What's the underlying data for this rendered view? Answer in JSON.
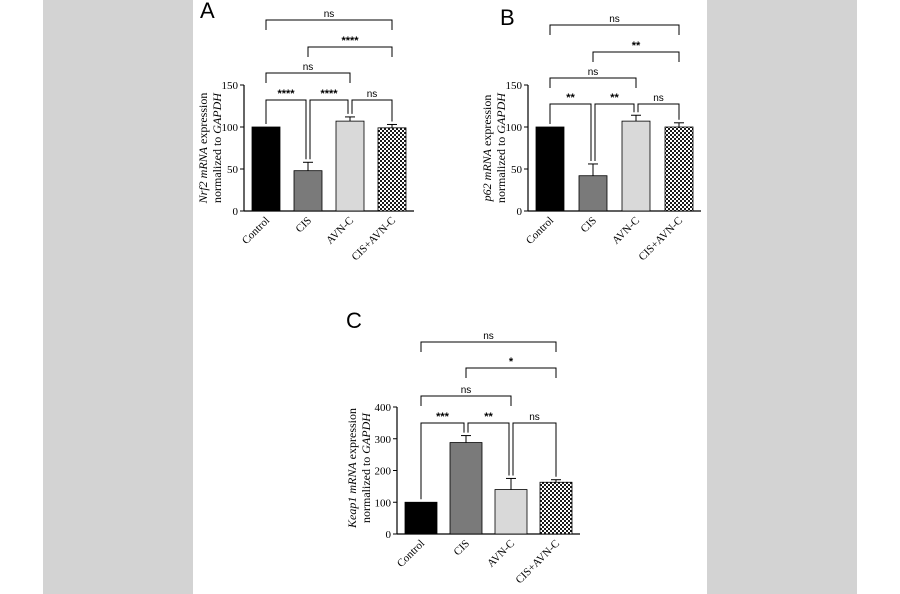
{
  "chart_data": [
    {
      "type": "bar",
      "panel_label": "A",
      "categories": [
        "Control",
        "CIS",
        "AVN-C",
        "CIS+AVN-C"
      ],
      "values": [
        100,
        48,
        107,
        99
      ],
      "errors": [
        0,
        10,
        5,
        4
      ],
      "ylim": [
        0,
        150
      ],
      "yticks": [
        0,
        50,
        100,
        150
      ],
      "ylabel_parts": [
        {
          "text": "Nrf2 mRNA",
          "italic": true
        },
        {
          "text": " expression",
          "italic": false
        }
      ],
      "ylabel_line2_parts": [
        {
          "text": "normalized to ",
          "italic": false
        },
        {
          "text": "GAPDH",
          "italic": true
        }
      ],
      "comparisons": [
        {
          "from": 0,
          "to": 1,
          "label": "****"
        },
        {
          "from": 1,
          "to": 2,
          "label": "****"
        },
        {
          "from": 2,
          "to": 3,
          "label": "ns"
        },
        {
          "from": 0,
          "to": 2,
          "label": "ns"
        },
        {
          "from": 1,
          "to": 3,
          "label": "****"
        },
        {
          "from": 0,
          "to": 3,
          "label": "ns"
        }
      ]
    },
    {
      "type": "bar",
      "panel_label": "B",
      "categories": [
        "Control",
        "CIS",
        "AVN-C",
        "CIS+AVN-C"
      ],
      "values": [
        100,
        42,
        107,
        100
      ],
      "errors": [
        0,
        14,
        7,
        5
      ],
      "ylim": [
        0,
        150
      ],
      "yticks": [
        0,
        50,
        100,
        150
      ],
      "ylabel_parts": [
        {
          "text": "p62 mRNA",
          "italic": true
        },
        {
          "text": " expression",
          "italic": false
        }
      ],
      "ylabel_line2_parts": [
        {
          "text": "normalized to ",
          "italic": false
        },
        {
          "text": "GAPDH",
          "italic": true
        }
      ],
      "comparisons": [
        {
          "from": 0,
          "to": 1,
          "label": "**"
        },
        {
          "from": 1,
          "to": 2,
          "label": "**"
        },
        {
          "from": 2,
          "to": 3,
          "label": "ns"
        },
        {
          "from": 0,
          "to": 2,
          "label": "ns"
        },
        {
          "from": 1,
          "to": 3,
          "label": "**"
        },
        {
          "from": 0,
          "to": 3,
          "label": "ns"
        }
      ]
    },
    {
      "type": "bar",
      "panel_label": "C",
      "categories": [
        "Control",
        "CIS",
        "AVN-C",
        "CIS+AVN-C"
      ],
      "values": [
        100,
        288,
        140,
        163
      ],
      "errors": [
        0,
        22,
        35,
        8
      ],
      "ylim": [
        0,
        400
      ],
      "yticks": [
        0,
        100,
        200,
        300,
        400
      ],
      "ylabel_parts": [
        {
          "text": "Keap1 mRNA",
          "italic": true
        },
        {
          "text": " expression",
          "italic": false
        }
      ],
      "ylabel_line2_parts": [
        {
          "text": "normalized to ",
          "italic": false
        },
        {
          "text": "GAPDH",
          "italic": true
        }
      ],
      "comparisons": [
        {
          "from": 0,
          "to": 1,
          "label": "***"
        },
        {
          "from": 1,
          "to": 2,
          "label": "**"
        },
        {
          "from": 2,
          "to": 3,
          "label": "ns"
        },
        {
          "from": 0,
          "to": 2,
          "label": "ns"
        },
        {
          "from": 1,
          "to": 3,
          "label": "*"
        },
        {
          "from": 0,
          "to": 3,
          "label": "ns"
        }
      ]
    }
  ],
  "bar_fills": [
    "#000000",
    "#7a7a7a",
    "#d9d9d9",
    "checker"
  ]
}
